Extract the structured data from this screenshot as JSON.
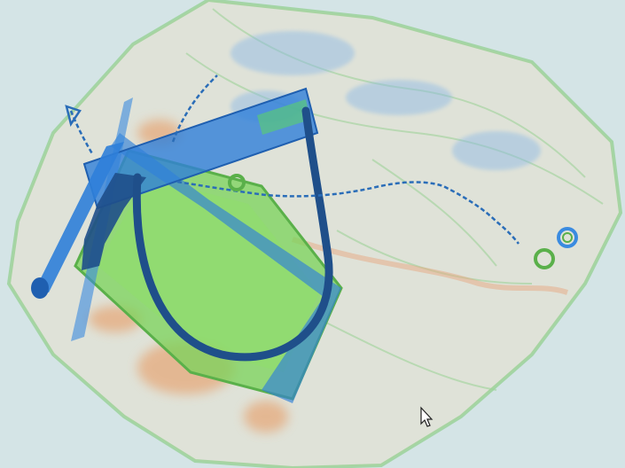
{
  "scan": {
    "background_color": "#d4e4e6",
    "bag_outline_color": "#8fcf8a",
    "bag_fill_color": "#e8e0cc",
    "organic_color": "#e8955a",
    "inorganic_color": "#7ad35a",
    "metal_color": "#2f7fd9",
    "dense_metal_color": "#1f4f8a",
    "chain_color": "#2a6db8"
  },
  "cursor": {
    "icon": "mouse-pointer-icon"
  }
}
